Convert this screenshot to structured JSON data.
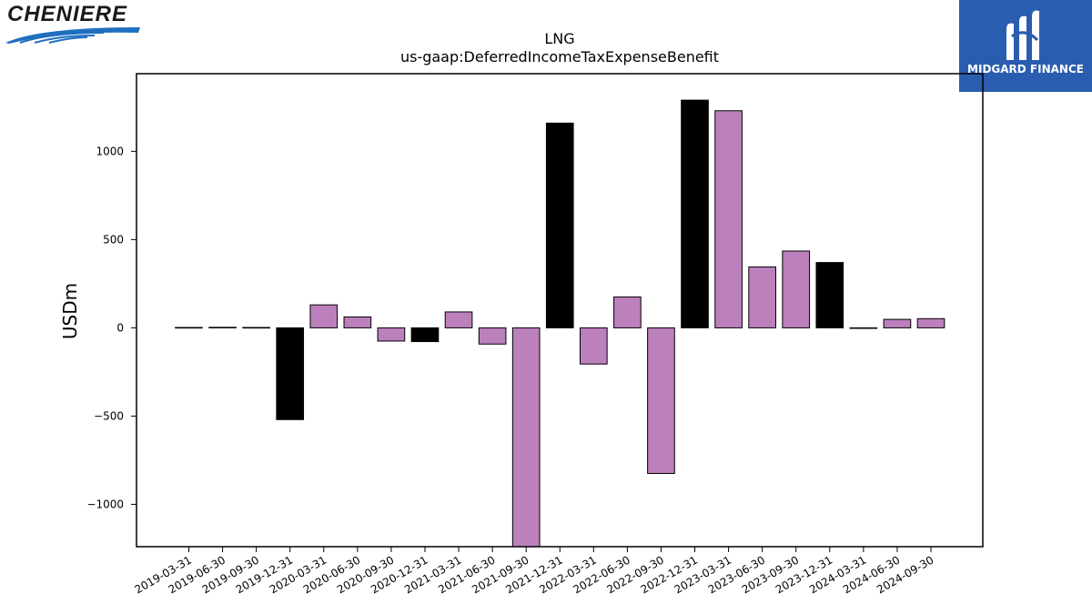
{
  "logos": {
    "left": {
      "text": "CHENIERE",
      "icon": "cheniere-swoosh-icon"
    },
    "right": {
      "text": "MIDGARD FINANCE",
      "icon": "midgard-m-icon",
      "bg": "#2a5db0"
    }
  },
  "chart_data": {
    "type": "bar",
    "title": "LNG",
    "subtitle": "us-gaap:DeferredIncomeTaxExpenseBenefit",
    "xlabel": "",
    "ylabel": "USDm",
    "ylim": [
      -1240,
      1440
    ],
    "yticks": [
      1000,
      500,
      0,
      -500,
      -1000
    ],
    "ytick_labels": [
      "1000",
      "500",
      "0",
      "−500",
      "−1000"
    ],
    "grid": false,
    "colors": {
      "quarterly": "#bc80bd",
      "annual": "#000000",
      "edge": "#000000"
    },
    "categories": [
      "2019-03-31",
      "2019-06-30",
      "2019-09-30",
      "2019-12-31",
      "2020-03-31",
      "2020-06-30",
      "2020-09-30",
      "2020-12-31",
      "2021-03-31",
      "2021-06-30",
      "2021-09-30",
      "2021-12-31",
      "2022-03-31",
      "2022-06-30",
      "2022-09-30",
      "2022-12-31",
      "2023-03-31",
      "2023-06-30",
      "2023-09-30",
      "2023-12-31",
      "2024-03-31",
      "2024-06-30",
      "2024-09-30"
    ],
    "values": [
      2,
      3,
      2,
      -520,
      130,
      62,
      -75,
      -78,
      90,
      -92,
      -1240,
      1160,
      -205,
      175,
      -825,
      1290,
      1230,
      345,
      435,
      370,
      -3,
      48,
      52
    ],
    "bar_color_keys": [
      "quarterly",
      "quarterly",
      "quarterly",
      "annual",
      "quarterly",
      "quarterly",
      "quarterly",
      "annual",
      "quarterly",
      "quarterly",
      "quarterly",
      "annual",
      "quarterly",
      "quarterly",
      "quarterly",
      "annual",
      "quarterly",
      "quarterly",
      "quarterly",
      "annual",
      "annual",
      "quarterly",
      "quarterly"
    ]
  }
}
